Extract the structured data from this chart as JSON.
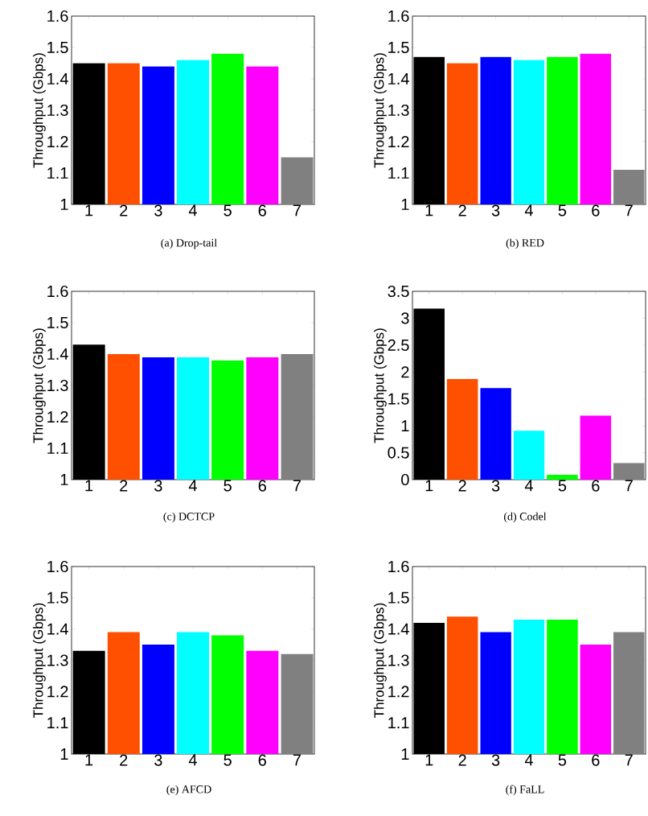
{
  "chart_data": [
    {
      "type": "bar",
      "title": "(a) Drop-tail",
      "ylabel": "Throughput (Gbps)",
      "categories": [
        "1",
        "2",
        "3",
        "4",
        "5",
        "6",
        "7"
      ],
      "values": [
        1.45,
        1.45,
        1.44,
        1.46,
        1.48,
        1.44,
        1.15
      ],
      "colors": [
        "#000000",
        "#ff4f00",
        "#0000ff",
        "#00ffff",
        "#00ff00",
        "#ff00ff",
        "#808080"
      ],
      "ylim": [
        1,
        1.6
      ],
      "yticks": [
        1,
        1.1,
        1.2,
        1.3,
        1.4,
        1.5,
        1.6
      ]
    },
    {
      "type": "bar",
      "title": "(b) RED",
      "ylabel": "Throughput (Gbps)",
      "categories": [
        "1",
        "2",
        "3",
        "4",
        "5",
        "6",
        "7"
      ],
      "values": [
        1.47,
        1.45,
        1.47,
        1.46,
        1.47,
        1.48,
        1.11
      ],
      "colors": [
        "#000000",
        "#ff4f00",
        "#0000ff",
        "#00ffff",
        "#00ff00",
        "#ff00ff",
        "#808080"
      ],
      "ylim": [
        1,
        1.6
      ],
      "yticks": [
        1,
        1.1,
        1.2,
        1.3,
        1.4,
        1.5,
        1.6
      ]
    },
    {
      "type": "bar",
      "title": "(c) DCTCP",
      "ylabel": "Throughput (Gbps)",
      "categories": [
        "1",
        "2",
        "3",
        "4",
        "5",
        "6",
        "7"
      ],
      "values": [
        1.43,
        1.4,
        1.39,
        1.39,
        1.38,
        1.39,
        1.4
      ],
      "colors": [
        "#000000",
        "#ff4f00",
        "#0000ff",
        "#00ffff",
        "#00ff00",
        "#ff00ff",
        "#808080"
      ],
      "ylim": [
        1,
        1.6
      ],
      "yticks": [
        1,
        1.1,
        1.2,
        1.3,
        1.4,
        1.5,
        1.6
      ]
    },
    {
      "type": "bar",
      "title": "(d) Codel",
      "ylabel": "Throughput (Gbps)",
      "categories": [
        "1",
        "2",
        "3",
        "4",
        "5",
        "6",
        "7"
      ],
      "values": [
        3.18,
        1.87,
        1.7,
        0.91,
        0.09,
        1.19,
        0.31
      ],
      "colors": [
        "#000000",
        "#ff4f00",
        "#0000ff",
        "#00ffff",
        "#00ff00",
        "#ff00ff",
        "#808080"
      ],
      "ylim": [
        0,
        3.5
      ],
      "yticks": [
        0,
        0.5,
        1,
        1.5,
        2,
        2.5,
        3,
        3.5
      ]
    },
    {
      "type": "bar",
      "title": "(e) AFCD",
      "ylabel": "Throughput (Gbps)",
      "categories": [
        "1",
        "2",
        "3",
        "4",
        "5",
        "6",
        "7"
      ],
      "values": [
        1.33,
        1.39,
        1.35,
        1.39,
        1.38,
        1.33,
        1.32
      ],
      "colors": [
        "#000000",
        "#ff4f00",
        "#0000ff",
        "#00ffff",
        "#00ff00",
        "#ff00ff",
        "#808080"
      ],
      "ylim": [
        1,
        1.6
      ],
      "yticks": [
        1,
        1.1,
        1.2,
        1.3,
        1.4,
        1.5,
        1.6
      ]
    },
    {
      "type": "bar",
      "title": "(f) FaLL",
      "ylabel": "Throughput (Gbps)",
      "categories": [
        "1",
        "2",
        "3",
        "4",
        "5",
        "6",
        "7"
      ],
      "values": [
        1.42,
        1.44,
        1.39,
        1.43,
        1.43,
        1.35,
        1.39
      ],
      "colors": [
        "#000000",
        "#ff4f00",
        "#0000ff",
        "#00ffff",
        "#00ff00",
        "#ff00ff",
        "#808080"
      ],
      "ylim": [
        1,
        1.6
      ],
      "yticks": [
        1,
        1.1,
        1.2,
        1.3,
        1.4,
        1.5,
        1.6
      ]
    }
  ]
}
